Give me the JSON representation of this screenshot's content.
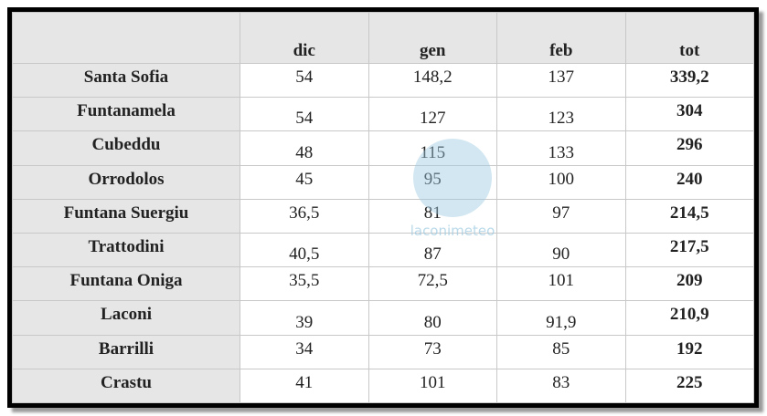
{
  "table": {
    "header": [
      "dic",
      "gen",
      "feb",
      "tot"
    ],
    "rows": [
      [
        "Santa Sofia",
        "54",
        "148,2",
        "137",
        "339,2"
      ],
      [
        "Funtanamela",
        "54",
        "127",
        "123",
        "304"
      ],
      [
        "Cubeddu",
        "48",
        "115",
        "133",
        "296"
      ],
      [
        "Orrodolos",
        "45",
        "95",
        "100",
        "240"
      ],
      [
        "Funtana Suergiu",
        "36,5",
        "81",
        "97",
        "214,5"
      ],
      [
        "Trattodini",
        "40,5",
        "87",
        "90",
        "217,5"
      ],
      [
        "Funtana Oniga",
        "35,5",
        "72,5",
        "101",
        "209"
      ],
      [
        "Laconi",
        "39",
        "80",
        "91,9",
        "210,9"
      ],
      [
        "Barrilli",
        "34",
        "73",
        "85",
        "192"
      ],
      [
        "Crastu",
        "41",
        "101",
        "83",
        "225"
      ]
    ]
  },
  "watermark": "laconimeteo"
}
